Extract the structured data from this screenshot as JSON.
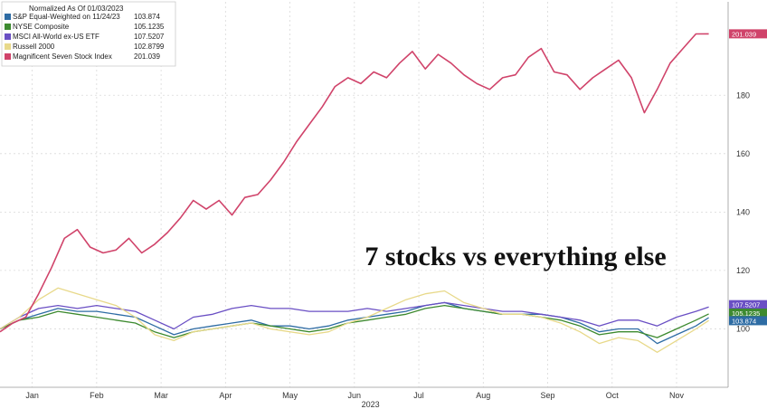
{
  "chart_data": {
    "type": "line",
    "title": "",
    "xlabel": "2023",
    "ylabel": "",
    "ylim": [
      80,
      212
    ],
    "y_ticks": [
      100,
      120,
      140,
      160,
      180
    ],
    "y_tick_labels": [
      "100",
      "120",
      "140",
      "160",
      "180"
    ],
    "x_tick_labels": [
      "Jan",
      "Feb",
      "Mar",
      "Apr",
      "May",
      "Jun",
      "Jul",
      "Aug",
      "Sep",
      "Oct",
      "Nov"
    ],
    "x_tick_positions": [
      0.5,
      1.5,
      2.5,
      3.5,
      4.5,
      5.5,
      6.5,
      7.5,
      8.5,
      9.5,
      10.5
    ],
    "xlim": [
      0,
      11.3
    ],
    "grid": true,
    "legend_position": "top-left",
    "legend_header": "Normalized As Of 01/03/2023",
    "annotation": "7 stocks vs everything else",
    "series": [
      {
        "name": "S&P Equal-Weighted on 11/24/23",
        "value_label": "103.874",
        "color": "#2e6ca4",
        "x": [
          0,
          0.3,
          0.6,
          0.9,
          1.2,
          1.5,
          1.8,
          2.1,
          2.4,
          2.7,
          3.0,
          3.3,
          3.6,
          3.9,
          4.2,
          4.5,
          4.8,
          5.1,
          5.4,
          5.7,
          6.0,
          6.3,
          6.6,
          6.9,
          7.2,
          7.5,
          7.8,
          8.1,
          8.4,
          8.7,
          9.0,
          9.3,
          9.6,
          9.9,
          10.2,
          10.5,
          10.8,
          11.0
        ],
        "y": [
          100,
          103,
          105,
          107,
          106,
          106,
          105,
          104,
          101,
          98,
          100,
          101,
          102,
          103,
          101,
          101,
          100,
          101,
          103,
          104,
          105,
          106,
          108,
          109,
          107,
          106,
          105,
          105,
          105,
          104,
          102,
          99,
          100,
          100,
          95,
          98,
          101,
          103.874
        ]
      },
      {
        "name": "NYSE Composite",
        "value_label": "105.1235",
        "color": "#3d8a2f",
        "x": [
          0,
          0.3,
          0.6,
          0.9,
          1.2,
          1.5,
          1.8,
          2.1,
          2.4,
          2.7,
          3.0,
          3.3,
          3.6,
          3.9,
          4.2,
          4.5,
          4.8,
          5.1,
          5.4,
          5.7,
          6.0,
          6.3,
          6.6,
          6.9,
          7.2,
          7.5,
          7.8,
          8.1,
          8.4,
          8.7,
          9.0,
          9.3,
          9.6,
          9.9,
          10.2,
          10.5,
          10.8,
          11.0
        ],
        "y": [
          100,
          103,
          104,
          106,
          105,
          104,
          103,
          102,
          99,
          97,
          99,
          100,
          101,
          102,
          101,
          100,
          99,
          100,
          102,
          103,
          104,
          105,
          107,
          108,
          107,
          106,
          105,
          105,
          104,
          103,
          101,
          98,
          99,
          99,
          97,
          100,
          103,
          105.1235
        ]
      },
      {
        "name": "MSCI All-World ex-US ETF",
        "value_label": "107.5207",
        "color": "#6a4fc4",
        "x": [
          0,
          0.3,
          0.6,
          0.9,
          1.2,
          1.5,
          1.8,
          2.1,
          2.4,
          2.7,
          3.0,
          3.3,
          3.6,
          3.9,
          4.2,
          4.5,
          4.8,
          5.1,
          5.4,
          5.7,
          6.0,
          6.3,
          6.6,
          6.9,
          7.2,
          7.5,
          7.8,
          8.1,
          8.4,
          8.7,
          9.0,
          9.3,
          9.6,
          9.9,
          10.2,
          10.5,
          10.8,
          11.0
        ],
        "y": [
          100,
          104,
          107,
          108,
          107,
          108,
          107,
          106,
          103,
          100,
          104,
          105,
          107,
          108,
          107,
          107,
          106,
          106,
          106,
          107,
          106,
          107,
          108,
          109,
          108,
          107,
          106,
          106,
          105,
          104,
          103,
          101,
          103,
          103,
          101,
          104,
          106,
          107.5207
        ]
      },
      {
        "name": "Russell 2000",
        "value_label": "102.8799",
        "color": "#e8d98a",
        "x": [
          0,
          0.3,
          0.6,
          0.9,
          1.2,
          1.5,
          1.8,
          2.1,
          2.4,
          2.7,
          3.0,
          3.3,
          3.6,
          3.9,
          4.2,
          4.5,
          4.8,
          5.1,
          5.4,
          5.7,
          6.0,
          6.3,
          6.6,
          6.9,
          7.2,
          7.5,
          7.8,
          8.1,
          8.4,
          8.7,
          9.0,
          9.3,
          9.6,
          9.9,
          10.2,
          10.5,
          10.8,
          11.0
        ],
        "y": [
          100,
          104,
          110,
          114,
          112,
          110,
          108,
          104,
          98,
          96,
          99,
          100,
          101,
          102,
          100,
          99,
          98,
          99,
          102,
          104,
          107,
          110,
          112,
          113,
          109,
          107,
          105,
          105,
          104,
          102,
          99,
          95,
          97,
          96,
          92,
          96,
          100,
          102.8799
        ]
      },
      {
        "name": "Magnificent Seven Stock Index",
        "value_label": "201.039",
        "color": "#d0436a",
        "x": [
          0,
          0.2,
          0.4,
          0.6,
          0.8,
          1.0,
          1.2,
          1.4,
          1.6,
          1.8,
          2.0,
          2.2,
          2.4,
          2.6,
          2.8,
          3.0,
          3.2,
          3.4,
          3.6,
          3.8,
          4.0,
          4.2,
          4.4,
          4.6,
          4.8,
          5.0,
          5.2,
          5.4,
          5.6,
          5.8,
          6.0,
          6.2,
          6.4,
          6.6,
          6.8,
          7.0,
          7.2,
          7.4,
          7.6,
          7.8,
          8.0,
          8.2,
          8.4,
          8.6,
          8.8,
          9.0,
          9.2,
          9.4,
          9.6,
          9.8,
          10.0,
          10.2,
          10.4,
          10.6,
          10.8,
          11.0
        ],
        "y": [
          99,
          102,
          104,
          112,
          121,
          131,
          134,
          128,
          126,
          127,
          131,
          126,
          129,
          133,
          138,
          144,
          141,
          144,
          139,
          145,
          146,
          151,
          157,
          164,
          170,
          176,
          183,
          186,
          184,
          188,
          186,
          191,
          195,
          189,
          194,
          191,
          187,
          184,
          182,
          186,
          187,
          193,
          196,
          188,
          187,
          182,
          186,
          189,
          192,
          186,
          174,
          182,
          191,
          196,
          201,
          201.039
        ]
      }
    ]
  }
}
